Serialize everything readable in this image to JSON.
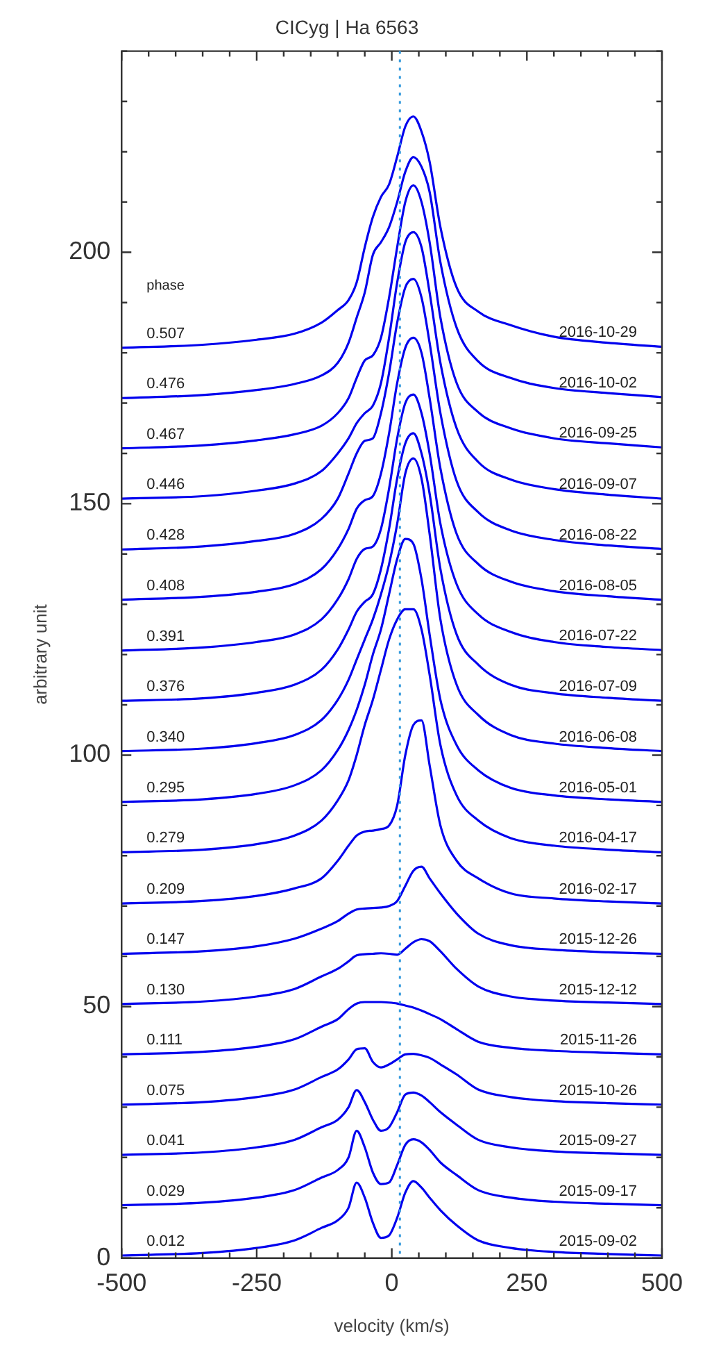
{
  "chart_data": {
    "type": "line",
    "title": "CICyg | Ha 6563",
    "xlabel": "velocity (km/s)",
    "ylabel": "arbitrary unit",
    "x": [
      -500,
      -350,
      -250,
      -180,
      -130,
      -100,
      -80,
      -65,
      -50,
      -35,
      -20,
      -5,
      10,
      25,
      40,
      55,
      70,
      90,
      120,
      160,
      220,
      300,
      400,
      500
    ],
    "xlim": [
      -500,
      500
    ],
    "xticks": [
      -500,
      {
        "value": -450,
        "label": null
      },
      {
        "value": -400,
        "label": null
      },
      {
        "value": -350,
        "label": null
      },
      {
        "value": -300,
        "label": null
      },
      -250,
      {
        "value": -200,
        "label": null
      },
      {
        "value": -150,
        "label": null
      },
      {
        "value": -100,
        "label": null
      },
      {
        "value": -50,
        "label": null
      },
      0,
      {
        "value": 50,
        "label": null
      },
      {
        "value": 100,
        "label": null
      },
      {
        "value": 150,
        "label": null
      },
      {
        "value": 200,
        "label": null
      },
      250,
      {
        "value": 300,
        "label": null
      },
      {
        "value": 350,
        "label": null
      },
      {
        "value": 400,
        "label": null
      },
      {
        "value": 450,
        "label": null
      },
      500
    ],
    "ylim": [
      0,
      240
    ],
    "yticks": [
      0,
      {
        "value": 10,
        "label": null
      },
      {
        "value": 20,
        "label": null
      },
      {
        "value": 30,
        "label": null
      },
      {
        "value": 40,
        "label": null
      },
      50,
      {
        "value": 60,
        "label": null
      },
      {
        "value": 70,
        "label": null
      },
      {
        "value": 80,
        "label": null
      },
      {
        "value": 90,
        "label": null
      },
      100,
      {
        "value": 110,
        "label": null
      },
      {
        "value": 120,
        "label": null
      },
      {
        "value": 130,
        "label": null
      },
      {
        "value": 140,
        "label": null
      },
      150,
      {
        "value": 160,
        "label": null
      },
      {
        "value": 170,
        "label": null
      },
      {
        "value": 180,
        "label": null
      },
      {
        "value": 190,
        "label": null
      },
      200,
      {
        "value": 210,
        "label": null
      },
      {
        "value": 220,
        "label": null
      },
      {
        "value": 230,
        "label": null
      },
      {
        "value": 240,
        "label": null
      }
    ],
    "grid": false,
    "legend": false,
    "ref_lines": [
      {
        "axis": "x",
        "value": 15,
        "color": "#3399dd",
        "line_style": "dotted"
      }
    ],
    "series": [
      {
        "name": "0.012",
        "color": "#0000ee",
        "values": [
          0.5,
          1,
          2,
          3.5,
          6,
          7.5,
          10,
          15,
          12,
          7,
          4,
          4.5,
          8,
          13,
          15.3,
          14,
          12,
          9.5,
          6.5,
          3.5,
          2,
          1.2,
          0.8,
          0.5
        ]
      },
      {
        "name": "0.029",
        "color": "#0000ee",
        "values": [
          10.5,
          11,
          12,
          13.5,
          16,
          17.5,
          20,
          25.3,
          22,
          17,
          14.7,
          15,
          18.5,
          22.5,
          23.6,
          23,
          21.5,
          19,
          16.5,
          13.5,
          12,
          11.2,
          10.8,
          10.5
        ]
      },
      {
        "name": "0.041",
        "color": "#0000ee",
        "values": [
          20.5,
          21,
          22,
          23.5,
          26,
          27.5,
          30,
          33.4,
          31,
          27.5,
          25.3,
          26,
          29,
          32.5,
          32.9,
          32.3,
          31,
          29,
          26.5,
          23.5,
          22,
          21.2,
          20.8,
          20.5
        ]
      },
      {
        "name": "0.075",
        "color": "#0000ee",
        "values": [
          30.5,
          31,
          32,
          33.5,
          36,
          37.5,
          39.5,
          41.5,
          41.7,
          39,
          37.9,
          38.5,
          39.5,
          40.5,
          40.6,
          40.3,
          39.8,
          38.5,
          36.5,
          33.5,
          32,
          31.2,
          30.8,
          30.5
        ]
      },
      {
        "name": "0.111",
        "color": "#0000ee",
        "values": [
          40.5,
          41,
          42,
          43.5,
          46,
          47.5,
          49.5,
          50.6,
          50.9,
          50.9,
          50.9,
          50.8,
          50.6,
          50.2,
          49.8,
          49.2,
          48.5,
          47.5,
          45.5,
          43,
          41.8,
          41.2,
          40.8,
          40.5
        ]
      },
      {
        "name": "0.130",
        "color": "#0000ee",
        "values": [
          50.5,
          51,
          52,
          53.5,
          56,
          57.5,
          59,
          60.2,
          60.4,
          60.5,
          60.6,
          60.5,
          60.3,
          61.5,
          62.8,
          63.4,
          63,
          61,
          57.5,
          54,
          52,
          51.2,
          50.8,
          50.5
        ]
      },
      {
        "name": "0.147",
        "color": "#0000ee",
        "values": [
          60.5,
          61,
          62,
          63.5,
          65.5,
          67,
          68.5,
          69.3,
          69.5,
          69.6,
          69.7,
          70,
          71,
          74,
          77,
          77.8,
          75.5,
          72.5,
          68.5,
          64.5,
          62.2,
          61.3,
          60.8,
          60.5
        ]
      },
      {
        "name": "0.209",
        "color": "#0000ee",
        "values": [
          70.5,
          71,
          72,
          73.5,
          75.5,
          79,
          82,
          84,
          84.8,
          85,
          85.3,
          86,
          90,
          100,
          106,
          106.9,
          98,
          86,
          79,
          75.5,
          72.5,
          71.5,
          70.9,
          70.5
        ]
      },
      {
        "name": "0.279",
        "color": "#0000ee",
        "values": [
          80.7,
          81.2,
          82.3,
          84,
          87,
          91,
          95,
          100,
          106,
          111,
          117,
          123,
          127,
          129,
          129,
          125,
          116,
          102,
          92,
          87,
          83.5,
          82,
          81.2,
          80.7
        ]
      },
      {
        "name": "0.295",
        "color": "#0000ee",
        "values": [
          90.7,
          91.2,
          92.3,
          94,
          97,
          101,
          105,
          109,
          114,
          120,
          125,
          132,
          139,
          143,
          142,
          135,
          124,
          111,
          102,
          97,
          93.5,
          92,
          91.2,
          90.7
        ]
      },
      {
        "name": "0.340",
        "color": "#0000ee",
        "values": [
          100.8,
          101.3,
          102.4,
          104,
          107,
          111,
          115,
          119,
          123,
          127,
          132,
          138,
          146,
          156,
          159,
          155,
          144,
          127,
          114,
          108,
          104,
          102.3,
          101.4,
          100.8
        ]
      },
      {
        "name": "0.376",
        "color": "#0000ee",
        "values": [
          110.8,
          111.3,
          112.4,
          114,
          117,
          121,
          125,
          128.5,
          130.5,
          132,
          137,
          145,
          155,
          162,
          164,
          160,
          152,
          137,
          124,
          118,
          114,
          112.3,
          111.4,
          110.8
        ]
      },
      {
        "name": "0.391",
        "color": "#0000ee",
        "values": [
          120.8,
          121.4,
          122.5,
          124,
          127,
          131,
          135,
          139,
          141,
          141.5,
          145,
          153,
          163,
          170,
          171.7,
          168,
          160,
          146,
          134,
          128,
          124.5,
          122.5,
          121.5,
          120.9
        ]
      },
      {
        "name": "0.408",
        "color": "#0000ee",
        "values": [
          130.9,
          131.5,
          132.5,
          134,
          137,
          141,
          145,
          149,
          150.7,
          151.5,
          156,
          164,
          174,
          181,
          183,
          180,
          171,
          157,
          144,
          138,
          134.5,
          132.6,
          131.6,
          130.9
        ]
      },
      {
        "name": "0.428",
        "color": "#0000ee",
        "values": [
          140.9,
          141.5,
          142.6,
          144,
          147,
          151,
          156,
          160,
          162.5,
          163,
          168,
          176,
          186,
          193,
          194.7,
          191,
          182,
          168,
          154.5,
          148.3,
          144.7,
          142.8,
          141.7,
          141
        ]
      },
      {
        "name": "0.446",
        "color": "#0000ee",
        "values": [
          151,
          151.5,
          152.6,
          154,
          156.5,
          160,
          163,
          166,
          168,
          169.5,
          174,
          183,
          194,
          202,
          204,
          201,
          192,
          178,
          165,
          158.3,
          154.8,
          152.9,
          151.8,
          151
        ]
      },
      {
        "name": "0.467",
        "color": "#0000ee",
        "values": [
          161,
          161.6,
          162.6,
          163.8,
          165.5,
          168,
          171,
          175,
          178.5,
          179.5,
          183,
          191,
          201,
          210,
          213.3,
          210,
          202,
          187,
          174,
          168.2,
          165,
          163,
          162,
          161.2
        ]
      },
      {
        "name": "0.476",
        "color": "#0000ee",
        "values": [
          171,
          171.6,
          172.6,
          173.8,
          175.5,
          178,
          182,
          187,
          192,
          199.5,
          202,
          205,
          210,
          216,
          218.9,
          217,
          212,
          198,
          185,
          178.3,
          175,
          173,
          172,
          171.2
        ]
      },
      {
        "name": "0.507",
        "color": "#0000ee",
        "values": [
          181,
          181.6,
          182.6,
          183.8,
          186,
          188.5,
          190.5,
          194,
          201,
          207,
          211,
          213.5,
          219,
          225,
          227,
          224,
          218,
          205,
          193,
          188.2,
          185.5,
          183.2,
          182,
          181.2
        ]
      }
    ],
    "annotations": [
      "phase",
      "2015-09-02",
      "2015-09-17",
      "2015-09-27",
      "2015-10-26",
      "2015-11-26",
      "2015-12-12",
      "2015-12-26",
      "2016-02-17",
      "2016-04-17",
      "2016-05-01",
      "2016-06-08",
      "2016-07-09",
      "2016-07-22",
      "2016-08-05",
      "2016-08-22",
      "2016-09-07",
      "2016-09-25",
      "2016-10-02",
      "2016-10-29"
    ]
  }
}
